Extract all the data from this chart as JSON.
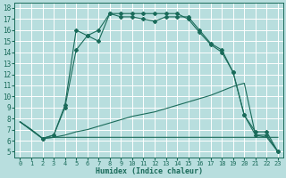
{
  "xlabel": "Humidex (Indice chaleur)",
  "bg_color": "#b8dede",
  "grid_color": "#ffffff",
  "line_color": "#1a6b5a",
  "xlim": [
    -0.5,
    23.5
  ],
  "ylim": [
    4.5,
    18.5
  ],
  "xticks": [
    0,
    1,
    2,
    3,
    4,
    5,
    6,
    7,
    8,
    9,
    10,
    11,
    12,
    13,
    14,
    15,
    16,
    17,
    18,
    19,
    20,
    21,
    22,
    23
  ],
  "yticks": [
    5,
    6,
    7,
    8,
    9,
    10,
    11,
    12,
    13,
    14,
    15,
    16,
    17,
    18
  ],
  "line1_x": [
    0,
    1,
    2,
    3,
    4,
    5,
    6,
    7,
    8,
    9,
    10,
    11,
    12,
    13,
    14,
    15,
    16,
    17,
    18,
    19,
    20,
    21,
    22,
    23
  ],
  "line1_y": [
    7.7,
    7.0,
    6.2,
    6.3,
    6.3,
    6.3,
    6.3,
    6.3,
    6.3,
    6.3,
    6.3,
    6.3,
    6.3,
    6.3,
    6.3,
    6.3,
    6.3,
    6.3,
    6.3,
    6.3,
    6.3,
    6.3,
    6.3,
    6.3
  ],
  "line2_x": [
    0,
    1,
    2,
    3,
    4,
    5,
    6,
    7,
    8,
    9,
    10,
    11,
    12,
    13,
    14,
    15,
    16,
    17,
    18,
    19,
    20,
    21,
    22,
    23
  ],
  "line2_y": [
    7.7,
    7.0,
    6.2,
    6.3,
    6.5,
    6.8,
    7.0,
    7.3,
    7.6,
    7.9,
    8.2,
    8.4,
    8.6,
    8.9,
    9.2,
    9.5,
    9.8,
    10.1,
    10.5,
    10.9,
    11.2,
    6.5,
    6.3,
    5.0
  ],
  "line3_x": [
    0,
    2,
    3,
    4,
    5,
    6,
    7,
    8,
    9,
    10,
    11,
    12,
    13,
    14,
    15,
    16,
    17,
    18,
    19,
    20,
    21,
    22,
    23
  ],
  "line3_y": [
    7.7,
    6.2,
    6.5,
    9.0,
    14.2,
    15.5,
    16.0,
    17.5,
    17.2,
    17.2,
    17.0,
    16.8,
    17.2,
    17.2,
    17.2,
    16.0,
    14.8,
    14.2,
    12.2,
    8.3,
    6.5,
    6.5,
    5.0
  ],
  "line3_markers_x": [
    2,
    3,
    4,
    5,
    6,
    7,
    8,
    9,
    10,
    11,
    12,
    13,
    14,
    15,
    16,
    17,
    18,
    19,
    20,
    21,
    22,
    23
  ],
  "line3_markers_y": [
    6.2,
    6.5,
    9.0,
    14.2,
    15.5,
    16.0,
    17.5,
    17.2,
    17.2,
    17.0,
    16.8,
    17.2,
    17.2,
    17.2,
    16.0,
    14.8,
    14.2,
    12.2,
    8.3,
    6.5,
    6.5,
    5.0
  ],
  "line4_x": [
    0,
    2,
    3,
    4,
    5,
    6,
    7,
    8,
    9,
    10,
    11,
    12,
    13,
    14,
    15,
    16,
    17,
    18,
    19,
    20,
    21,
    22,
    23
  ],
  "line4_y": [
    7.7,
    6.2,
    6.5,
    9.2,
    16.0,
    15.5,
    15.0,
    17.5,
    17.5,
    17.5,
    17.5,
    17.5,
    17.5,
    17.5,
    17.0,
    15.8,
    14.7,
    14.0,
    12.2,
    8.3,
    6.8,
    6.8,
    5.0
  ],
  "line4_markers_x": [
    2,
    3,
    4,
    5,
    6,
    7,
    8,
    9,
    10,
    11,
    12,
    13,
    14,
    15,
    16,
    17,
    18,
    19,
    20,
    21,
    22,
    23
  ],
  "line4_markers_y": [
    6.2,
    6.5,
    9.2,
    16.0,
    15.5,
    15.0,
    17.5,
    17.5,
    17.5,
    17.5,
    17.5,
    17.5,
    17.5,
    17.0,
    15.8,
    14.7,
    14.0,
    12.2,
    8.3,
    6.8,
    6.8,
    5.0
  ]
}
